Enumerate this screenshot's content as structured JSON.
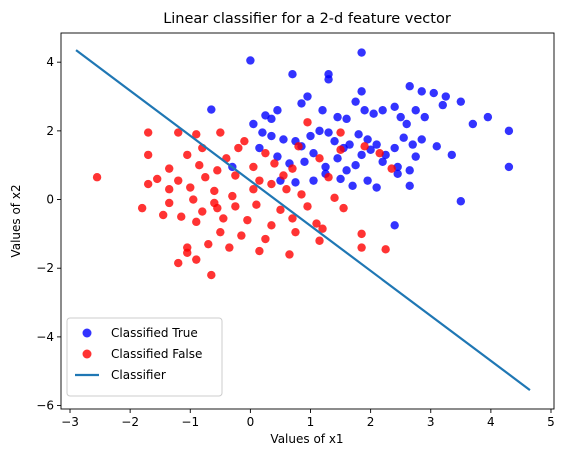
{
  "chart_data": {
    "type": "scatter",
    "title": "Linear classifier for a 2-d feature vector",
    "xlabel": "Values of x1",
    "ylabel": "Values of x2",
    "xlim": [
      -3.15,
      5.05
    ],
    "ylim": [
      -6.1,
      4.85
    ],
    "xticks": [
      -3,
      -2,
      -1,
      0,
      1,
      2,
      3,
      4,
      5
    ],
    "yticks": [
      -6,
      -4,
      -2,
      0,
      2,
      4
    ],
    "grid": false,
    "legend_position": "lower-left",
    "series": [
      {
        "name": "Classified True",
        "kind": "scatter",
        "color": "#0000ff",
        "points": [
          [
            0.0,
            4.05
          ],
          [
            0.7,
            3.65
          ],
          [
            1.3,
            3.65
          ],
          [
            1.3,
            3.5
          ],
          [
            1.85,
            4.28
          ],
          [
            1.85,
            3.15
          ],
          [
            2.65,
            3.3
          ],
          [
            2.85,
            3.15
          ],
          [
            3.05,
            3.1
          ],
          [
            3.25,
            3.0
          ],
          [
            -0.65,
            2.62
          ],
          [
            0.25,
            2.45
          ],
          [
            0.35,
            2.35
          ],
          [
            0.45,
            2.6
          ],
          [
            0.85,
            2.8
          ],
          [
            0.95,
            3.0
          ],
          [
            1.2,
            2.6
          ],
          [
            1.45,
            2.4
          ],
          [
            1.6,
            2.35
          ],
          [
            1.75,
            2.85
          ],
          [
            1.9,
            2.6
          ],
          [
            2.05,
            2.5
          ],
          [
            2.2,
            2.6
          ],
          [
            2.4,
            2.7
          ],
          [
            2.5,
            2.4
          ],
          [
            2.6,
            2.2
          ],
          [
            2.75,
            2.6
          ],
          [
            2.9,
            2.4
          ],
          [
            3.2,
            2.75
          ],
          [
            3.5,
            2.85
          ],
          [
            3.7,
            2.2
          ],
          [
            3.95,
            2.4
          ],
          [
            0.05,
            2.2
          ],
          [
            0.2,
            1.95
          ],
          [
            0.35,
            1.85
          ],
          [
            0.55,
            1.75
          ],
          [
            0.75,
            1.7
          ],
          [
            0.85,
            1.55
          ],
          [
            1.0,
            1.85
          ],
          [
            1.15,
            2.0
          ],
          [
            1.3,
            1.95
          ],
          [
            1.4,
            1.7
          ],
          [
            1.55,
            1.5
          ],
          [
            1.65,
            1.6
          ],
          [
            1.8,
            1.9
          ],
          [
            1.95,
            1.75
          ],
          [
            2.1,
            1.6
          ],
          [
            2.25,
            1.3
          ],
          [
            2.4,
            1.5
          ],
          [
            2.55,
            1.8
          ],
          [
            2.7,
            1.6
          ],
          [
            2.85,
            1.75
          ],
          [
            3.1,
            1.55
          ],
          [
            3.35,
            1.3
          ],
          [
            4.3,
            2.0
          ],
          [
            0.15,
            1.5
          ],
          [
            0.45,
            1.25
          ],
          [
            0.65,
            1.05
          ],
          [
            0.9,
            1.1
          ],
          [
            1.05,
            1.35
          ],
          [
            1.25,
            0.95
          ],
          [
            1.45,
            1.2
          ],
          [
            1.6,
            0.85
          ],
          [
            1.75,
            1.0
          ],
          [
            1.85,
            1.3
          ],
          [
            2.0,
            1.45
          ],
          [
            2.2,
            1.1
          ],
          [
            2.45,
            0.95
          ],
          [
            2.65,
            0.85
          ],
          [
            2.75,
            1.25
          ],
          [
            -0.3,
            0.95
          ],
          [
            0.5,
            0.55
          ],
          [
            0.75,
            0.5
          ],
          [
            1.05,
            0.55
          ],
          [
            1.25,
            0.75
          ],
          [
            1.5,
            0.6
          ],
          [
            1.7,
            0.4
          ],
          [
            1.95,
            0.55
          ],
          [
            2.1,
            0.35
          ],
          [
            2.45,
            0.75
          ],
          [
            2.65,
            0.4
          ],
          [
            3.5,
            -0.05
          ],
          [
            2.4,
            -0.75
          ],
          [
            4.3,
            0.95
          ]
        ]
      },
      {
        "name": "Classified False",
        "kind": "scatter",
        "color": "#ff0000",
        "points": [
          [
            -1.7,
            1.95
          ],
          [
            -1.2,
            1.95
          ],
          [
            -0.9,
            1.9
          ],
          [
            -0.5,
            1.95
          ],
          [
            -0.1,
            1.7
          ],
          [
            1.5,
            1.95
          ],
          [
            0.8,
            1.55
          ],
          [
            -0.8,
            1.5
          ],
          [
            -0.2,
            1.5
          ],
          [
            -1.7,
            1.3
          ],
          [
            -1.05,
            1.3
          ],
          [
            -0.4,
            1.2
          ],
          [
            0.25,
            1.35
          ],
          [
            -1.35,
            0.9
          ],
          [
            -0.85,
            1.0
          ],
          [
            -0.55,
            0.85
          ],
          [
            0.05,
            0.95
          ],
          [
            0.4,
            1.05
          ],
          [
            -1.55,
            0.6
          ],
          [
            -1.2,
            0.55
          ],
          [
            -0.75,
            0.65
          ],
          [
            -0.25,
            0.7
          ],
          [
            0.15,
            0.55
          ],
          [
            0.55,
            0.7
          ],
          [
            -1.7,
            0.45
          ],
          [
            -1.35,
            0.3
          ],
          [
            -1.0,
            0.35
          ],
          [
            -0.6,
            0.25
          ],
          [
            -0.3,
            0.1
          ],
          [
            0.05,
            0.3
          ],
          [
            0.35,
            0.45
          ],
          [
            -2.55,
            0.65
          ],
          [
            -1.8,
            -0.25
          ],
          [
            -1.35,
            -0.1
          ],
          [
            -0.95,
            0.0
          ],
          [
            -0.6,
            -0.1
          ],
          [
            -0.25,
            -0.2
          ],
          [
            0.1,
            -0.15
          ],
          [
            0.5,
            -0.3
          ],
          [
            0.95,
            -0.2
          ],
          [
            -1.45,
            -0.45
          ],
          [
            -1.15,
            -0.5
          ],
          [
            -0.8,
            -0.35
          ],
          [
            -0.45,
            -0.55
          ],
          [
            -0.05,
            -0.6
          ],
          [
            0.35,
            -0.75
          ],
          [
            0.7,
            -0.55
          ],
          [
            1.1,
            -0.7
          ],
          [
            -0.9,
            -0.65
          ],
          [
            -0.5,
            -0.95
          ],
          [
            -0.15,
            -1.05
          ],
          [
            0.25,
            -1.15
          ],
          [
            0.75,
            -0.95
          ],
          [
            1.15,
            -1.2
          ],
          [
            -1.05,
            -1.4
          ],
          [
            -0.7,
            -1.3
          ],
          [
            -0.35,
            -1.4
          ],
          [
            0.15,
            -1.5
          ],
          [
            0.65,
            -1.6
          ],
          [
            -1.05,
            -1.55
          ],
          [
            -0.9,
            -1.75
          ],
          [
            -1.2,
            -1.85
          ],
          [
            -0.65,
            -2.2
          ],
          [
            1.85,
            -1.0
          ],
          [
            2.25,
            -1.45
          ],
          [
            1.85,
            -1.4
          ],
          [
            1.9,
            1.55
          ],
          [
            2.15,
            1.35
          ],
          [
            2.35,
            0.9
          ],
          [
            1.5,
            1.45
          ],
          [
            1.3,
            0.65
          ],
          [
            1.15,
            1.2
          ],
          [
            1.55,
            -0.25
          ],
          [
            1.2,
            -0.85
          ],
          [
            0.6,
            0.3
          ],
          [
            0.85,
            0.15
          ],
          [
            0.95,
            2.25
          ],
          [
            0.7,
            0.9
          ],
          [
            -0.55,
            -0.25
          ],
          [
            1.4,
            0.05
          ]
        ]
      },
      {
        "name": "Classifier",
        "kind": "line",
        "color": "#1f77b4",
        "points": [
          [
            -2.9,
            4.35
          ],
          [
            4.65,
            -5.55
          ]
        ]
      }
    ]
  }
}
